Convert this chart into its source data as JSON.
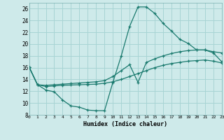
{
  "xlabel": "Humidex (Indice chaleur)",
  "bg_color": "#ceeaea",
  "grid_color": "#a8d4d4",
  "line_color": "#1a7a6e",
  "xlim": [
    0,
    23
  ],
  "ylim": [
    8,
    27
  ],
  "yticks": [
    8,
    10,
    12,
    14,
    16,
    18,
    20,
    22,
    24,
    26
  ],
  "xticks": [
    0,
    1,
    2,
    3,
    4,
    5,
    6,
    7,
    8,
    9,
    10,
    11,
    12,
    13,
    14,
    15,
    16,
    17,
    18,
    19,
    20,
    21,
    22,
    23
  ],
  "line1_x": [
    0,
    1,
    2,
    3,
    4,
    5,
    6,
    7,
    8,
    9,
    10,
    11,
    12,
    13,
    14,
    15,
    16,
    17,
    18,
    19,
    20,
    21,
    22,
    23
  ],
  "line1_y": [
    16.1,
    13.1,
    12.2,
    11.9,
    10.5,
    9.5,
    9.3,
    8.8,
    8.7,
    8.7,
    13.5,
    18.0,
    23.0,
    26.3,
    26.3,
    25.2,
    23.5,
    22.2,
    20.8,
    20.1,
    19.0,
    19.0,
    18.5,
    17.0
  ],
  "line2_x": [
    0,
    1,
    2,
    3,
    4,
    5,
    6,
    7,
    8,
    9,
    10,
    11,
    12,
    13,
    14,
    15,
    16,
    17,
    18,
    19,
    20,
    21,
    22,
    23
  ],
  "line2_y": [
    16.1,
    13.1,
    13.0,
    13.1,
    13.2,
    13.3,
    13.4,
    13.5,
    13.6,
    13.8,
    14.5,
    15.5,
    16.5,
    13.5,
    16.9,
    17.5,
    18.0,
    18.4,
    18.7,
    18.9,
    19.0,
    19.0,
    18.7,
    18.5
  ],
  "line3_x": [
    0,
    1,
    2,
    3,
    4,
    5,
    6,
    7,
    8,
    9,
    10,
    11,
    12,
    13,
    14,
    15,
    16,
    17,
    18,
    19,
    20,
    21,
    22,
    23
  ],
  "line3_y": [
    16.1,
    13.1,
    12.8,
    12.9,
    13.0,
    13.05,
    13.1,
    13.15,
    13.2,
    13.35,
    13.6,
    14.0,
    14.5,
    15.0,
    15.5,
    16.0,
    16.4,
    16.7,
    16.9,
    17.1,
    17.2,
    17.3,
    17.1,
    16.8
  ]
}
